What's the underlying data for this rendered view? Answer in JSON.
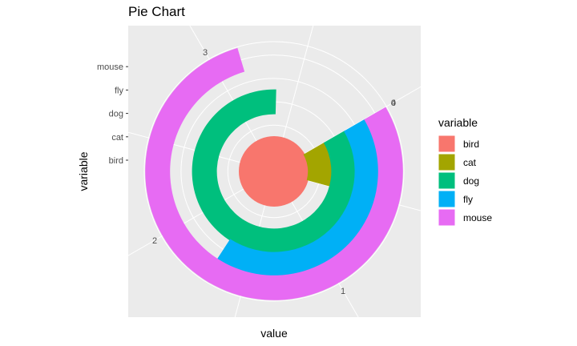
{
  "chart_data": {
    "type": "pie",
    "title": "Pie Chart",
    "xlabel": "value",
    "ylabel": "variable",
    "coord": "polar",
    "categories": [
      "bird",
      "cat",
      "dog",
      "fly",
      "mouse"
    ],
    "values": [
      0,
      0.5,
      3.35,
      1.7,
      3.15
    ],
    "colors": [
      "#F8766D",
      "#A3A500",
      "#00BF7D",
      "#00B0F6",
      "#E76BF3"
    ],
    "angle_axis": {
      "min": 0,
      "max": 4,
      "tick_labels": [
        "0",
        "1",
        "2",
        "3",
        "4"
      ]
    },
    "y_tick_labels": [
      "bird",
      "cat",
      "dog",
      "fly",
      "mouse"
    ],
    "legend": {
      "title": "variable",
      "position": "right",
      "labels": [
        "bird",
        "cat",
        "dog",
        "fly",
        "mouse"
      ]
    },
    "grid": true,
    "panel_background": "#EBEBEB"
  }
}
